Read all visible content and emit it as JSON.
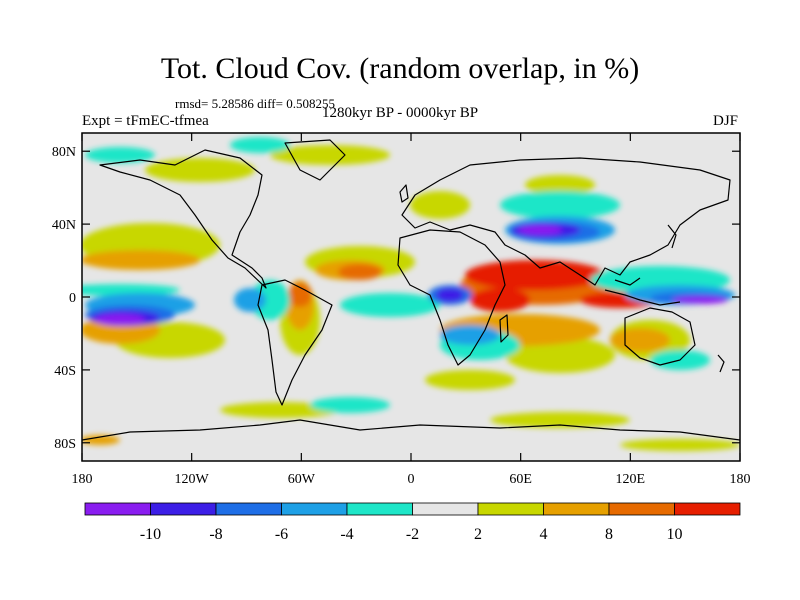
{
  "title": "Tot. Cloud Cov. (random overlap, in %)",
  "stats": "rmsd= 5.28586 diff= 0.508255",
  "experiment": "Expt = tFmEC-tfmea",
  "period": "1280kyr BP - 0000kyr BP",
  "season": "DJF",
  "map": {
    "lon_range": [
      -180,
      180
    ],
    "lat_range": [
      -90,
      90
    ],
    "x_ticks": [
      {
        "lon": -180,
        "label": "180"
      },
      {
        "lon": -120,
        "label": "120W"
      },
      {
        "lon": -60,
        "label": "60W"
      },
      {
        "lon": 0,
        "label": "0"
      },
      {
        "lon": 60,
        "label": "60E"
      },
      {
        "lon": 120,
        "label": "120E"
      },
      {
        "lon": 180,
        "label": "180"
      }
    ],
    "y_ticks": [
      {
        "lat": 80,
        "label": "80N"
      },
      {
        "lat": 40,
        "label": "40N"
      },
      {
        "lat": 0,
        "label": "0"
      },
      {
        "lat": -40,
        "label": "40S"
      },
      {
        "lat": -80,
        "label": "80S"
      }
    ],
    "background_color": "#e6e6e6"
  },
  "colorbar": {
    "colors": [
      "#8a1df0",
      "#3c1ee6",
      "#1e6ee6",
      "#1ea0e6",
      "#1ee6c8",
      "#e6e6e6",
      "#c8d700",
      "#e6a000",
      "#e66a00",
      "#e61e00"
    ],
    "labels": [
      "-10",
      "-8",
      "-6",
      "-4",
      "-2",
      "2",
      "4",
      "8",
      "10"
    ]
  }
}
